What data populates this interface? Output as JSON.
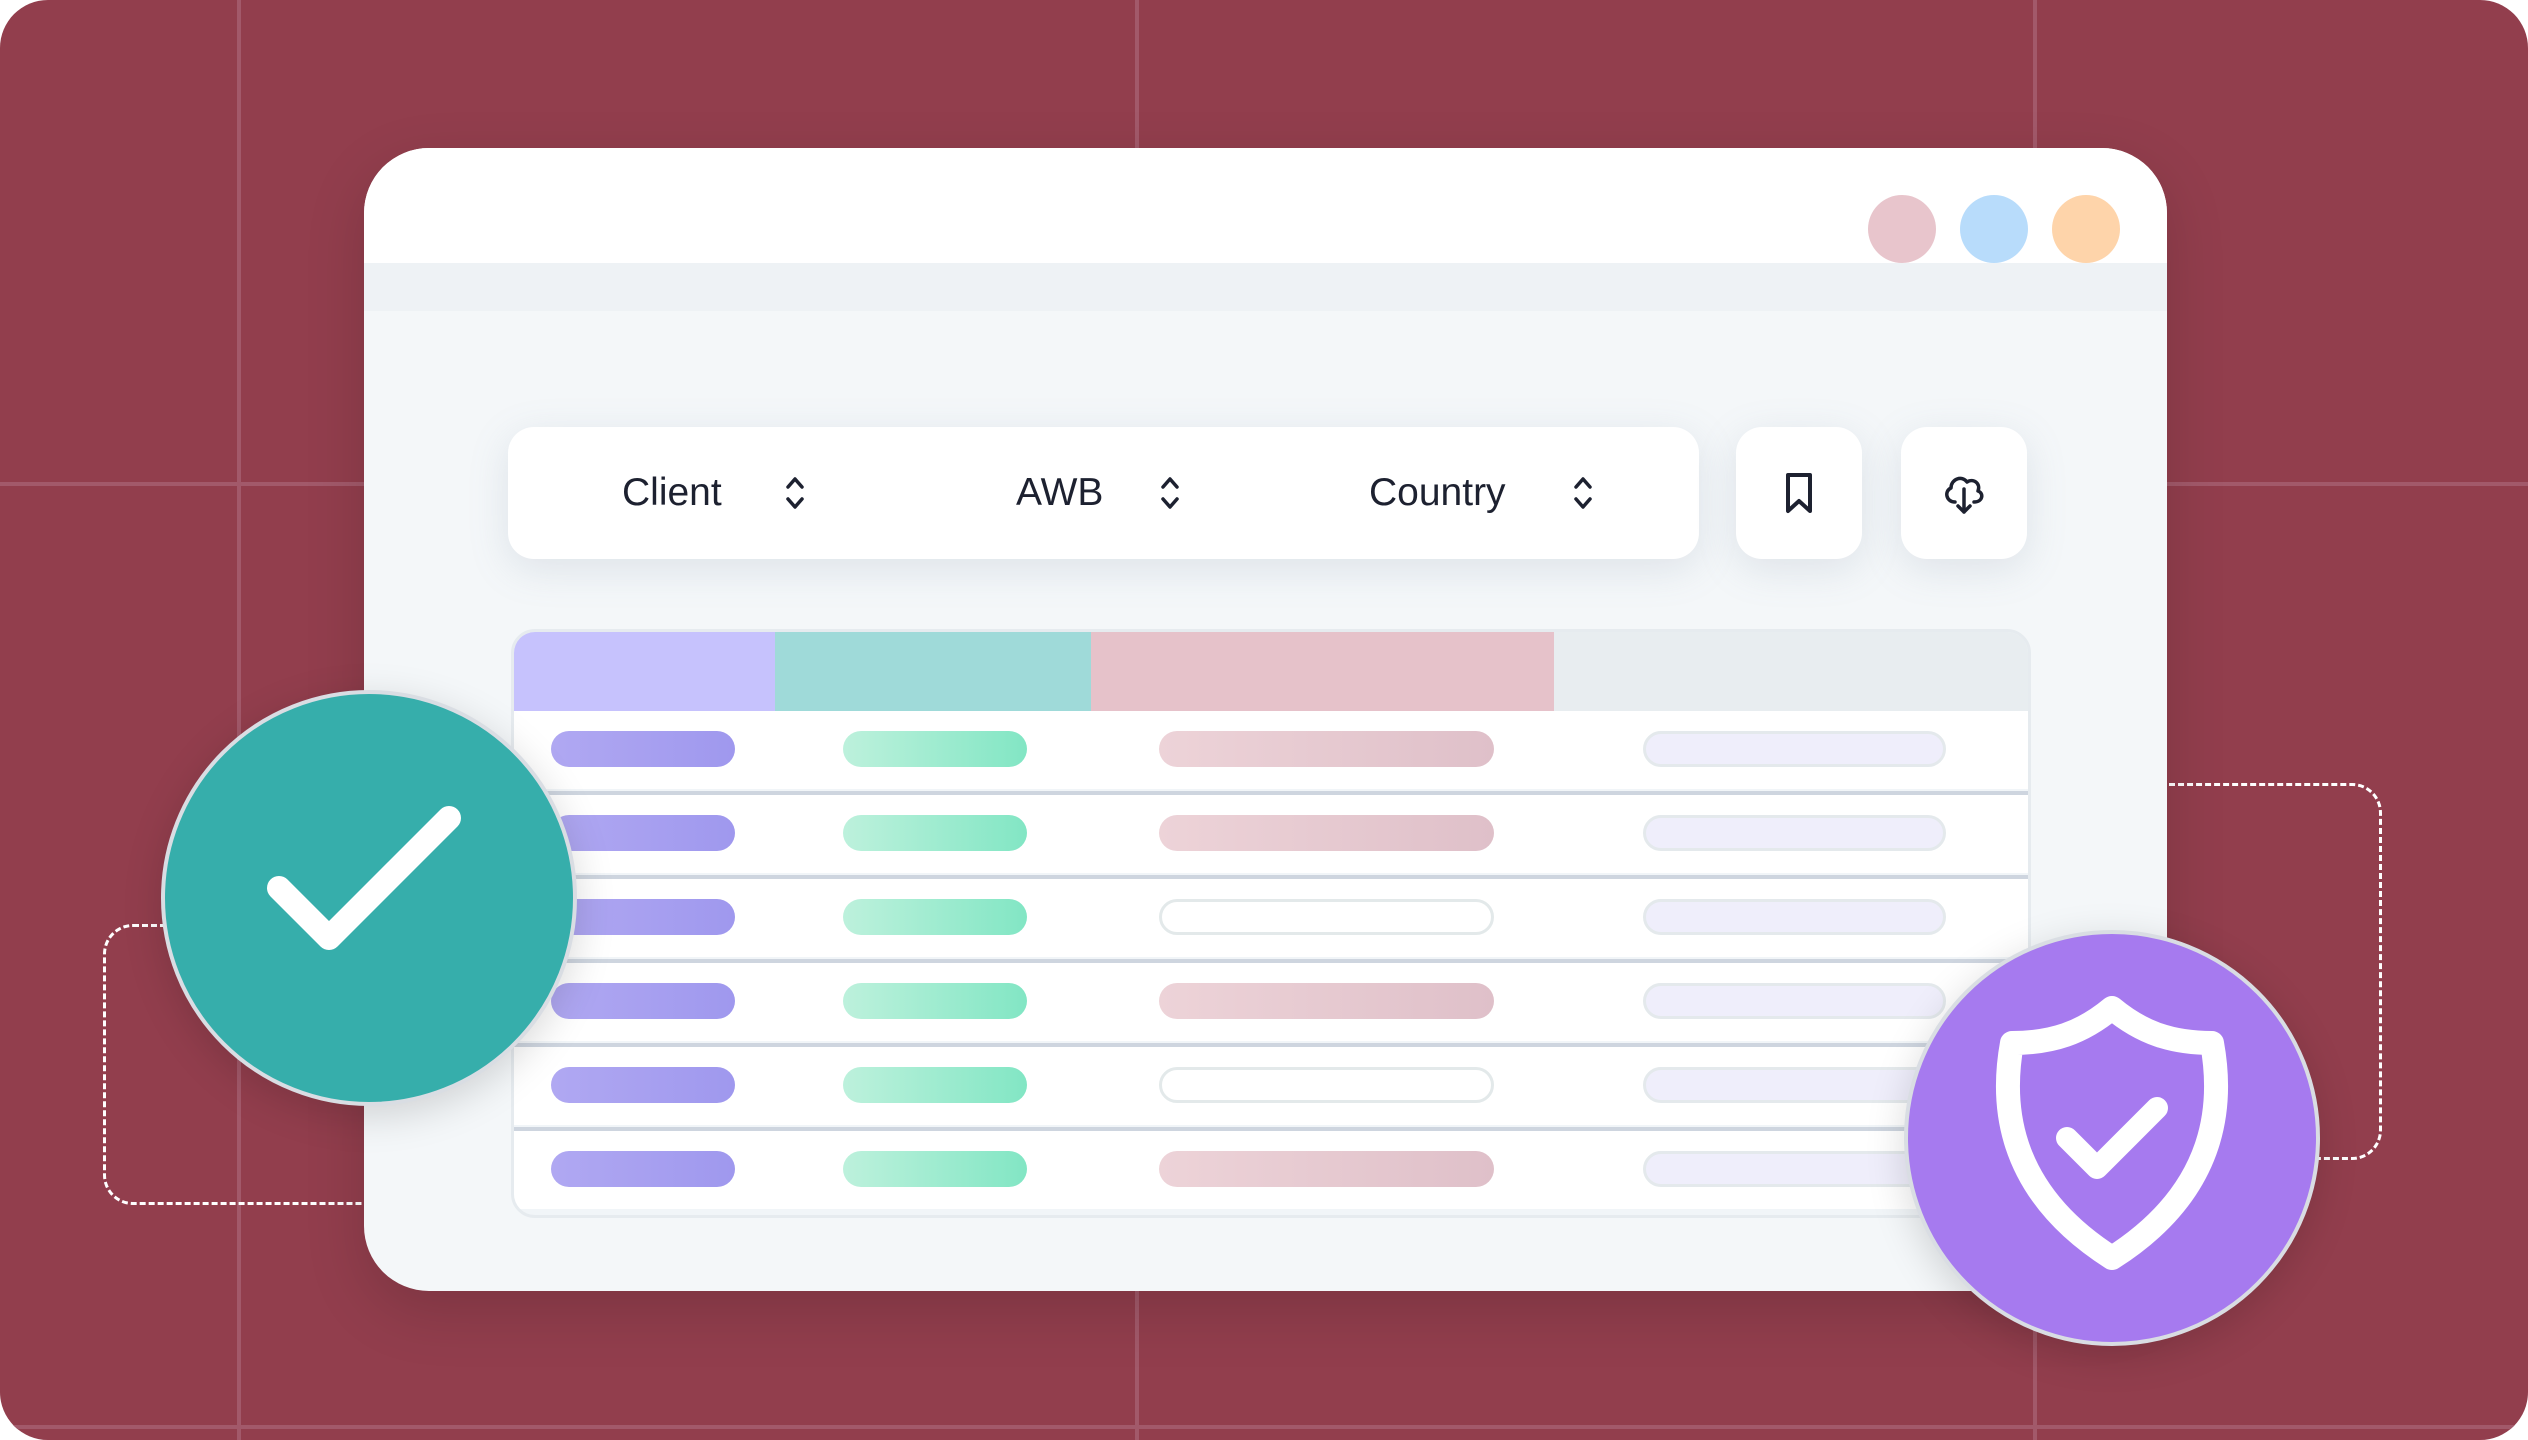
{
  "colors": {
    "background": "#923e4d",
    "window_dots": [
      "#e8c5cc",
      "#b8dcfb",
      "#fed4aa"
    ],
    "header_columns": [
      "#c6c2fd",
      "#9fdad9",
      "#e6c2ca",
      "#e8edf0"
    ],
    "success_badge": "#36aeab",
    "security_badge": "#a67aef"
  },
  "toolbar": {
    "columns": [
      {
        "label": "Client",
        "icon": "sort-icon"
      },
      {
        "label": "AWB",
        "icon": "sort-icon"
      },
      {
        "label": "Country",
        "icon": "sort-icon"
      }
    ],
    "buttons": [
      {
        "name": "bookmark",
        "icon": "bookmark-icon"
      },
      {
        "name": "download",
        "icon": "cloud-download-icon"
      }
    ]
  },
  "table": {
    "rows": [
      {
        "country_filled": true
      },
      {
        "country_filled": true
      },
      {
        "country_filled": false
      },
      {
        "country_filled": true
      },
      {
        "country_filled": false
      },
      {
        "country_filled": true
      }
    ]
  },
  "badges": {
    "success": {
      "icon": "checkmark-icon"
    },
    "security": {
      "icon": "shield-check-icon"
    }
  }
}
